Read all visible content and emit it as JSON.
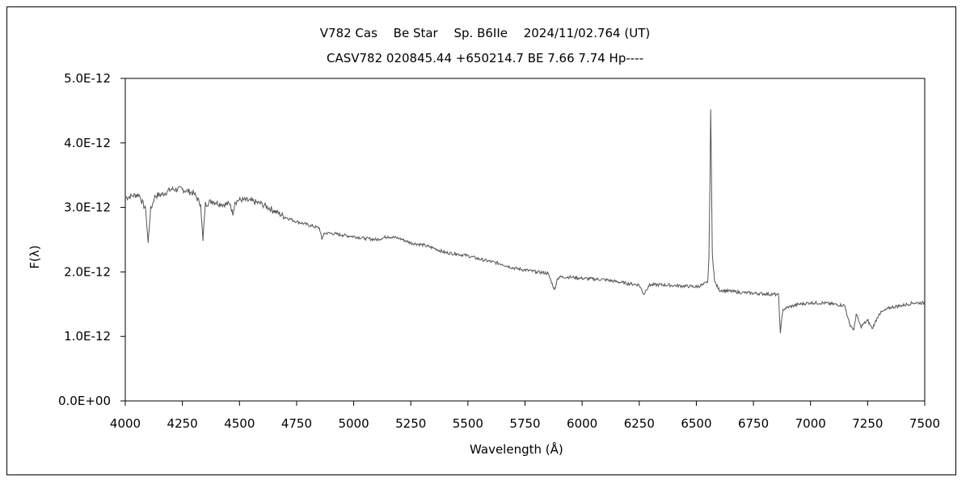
{
  "chart_data": {
    "type": "line",
    "title": "V782 Cas　 Be Star　 Sp. B6IIe　 2024/11/02.764 (UT)",
    "subtitle": "CASV782 020845.44 +650214.7 BE 7.66 7.74 Hp----",
    "xlabel": "Wavelength (Å)",
    "ylabel": "F(λ)",
    "xlim": [
      4000,
      7500
    ],
    "ylim": [
      0,
      5e-12
    ],
    "x_ticks": [
      4000,
      4250,
      4500,
      4750,
      5000,
      5250,
      5500,
      5750,
      6000,
      6250,
      6500,
      6750,
      7000,
      7250,
      7500
    ],
    "x_tick_labels": [
      "4000",
      "4250",
      "4500",
      "4750",
      "5000",
      "5250",
      "5500",
      "5750",
      "6000",
      "6250",
      "6500",
      "6750",
      "7000",
      "7250",
      "7500"
    ],
    "y_ticks": [
      0,
      1e-12,
      2e-12,
      3e-12,
      4e-12,
      5e-12
    ],
    "y_tick_labels": [
      "0.0E+00",
      "1.0E-12",
      "2.0E-12",
      "3.0E-12",
      "4.0E-12",
      "5.0E-12"
    ],
    "grid": false,
    "line_color": "#555555",
    "series": [
      {
        "x": [
          4000,
          4030,
          4060,
          4090,
          4100,
          4110,
          4130,
          4160,
          4200,
          4250,
          4300,
          4330,
          4340,
          4350,
          4380,
          4420,
          4460,
          4470,
          4480,
          4500,
          4550,
          4600,
          4650,
          4700,
          4750,
          4800,
          4850,
          4861,
          4870,
          4900,
          4950,
          5000,
          5050,
          5100,
          5150,
          5200,
          5250,
          5300,
          5350,
          5400,
          5450,
          5500,
          5550,
          5600,
          5650,
          5700,
          5750,
          5800,
          5850,
          5880,
          5890,
          5900,
          5950,
          6000,
          6050,
          6100,
          6150,
          6200,
          6250,
          6270,
          6280,
          6290,
          6300,
          6350,
          6400,
          6450,
          6500,
          6530,
          6550,
          6555,
          6560,
          6563,
          6566,
          6570,
          6580,
          6600,
          6650,
          6700,
          6750,
          6800,
          6850,
          6860,
          6868,
          6875,
          6880,
          6900,
          6950,
          7000,
          7050,
          7100,
          7150,
          7170,
          7190,
          7200,
          7220,
          7250,
          7270,
          7300,
          7350,
          7400,
          7450,
          7500
        ],
        "y": [
          3.15e-12,
          3.18e-12,
          3.2e-12,
          2.95e-12,
          2.45e-12,
          2.95e-12,
          3.18e-12,
          3.2e-12,
          3.28e-12,
          3.28e-12,
          3.22e-12,
          3.05e-12,
          2.48e-12,
          3.05e-12,
          3.1e-12,
          3.05e-12,
          3.05e-12,
          2.9e-12,
          3.08e-12,
          3.12e-12,
          3.1e-12,
          3.05e-12,
          2.95e-12,
          2.85e-12,
          2.78e-12,
          2.73e-12,
          2.68e-12,
          2.5e-12,
          2.6e-12,
          2.6e-12,
          2.57e-12,
          2.55e-12,
          2.52e-12,
          2.5e-12,
          2.55e-12,
          2.52e-12,
          2.45e-12,
          2.42e-12,
          2.37e-12,
          2.3e-12,
          2.28e-12,
          2.25e-12,
          2.2e-12,
          2.16e-12,
          2.12e-12,
          2.06e-12,
          2.03e-12,
          2e-12,
          1.98e-12,
          1.72e-12,
          1.88e-12,
          1.92e-12,
          1.92e-12,
          1.9e-12,
          1.89e-12,
          1.88e-12,
          1.85e-12,
          1.82e-12,
          1.8e-12,
          1.65e-12,
          1.72e-12,
          1.78e-12,
          1.8e-12,
          1.8e-12,
          1.79e-12,
          1.78e-12,
          1.77e-12,
          1.8e-12,
          1.85e-12,
          2.2e-12,
          3.5e-12,
          4.52e-12,
          3.6e-12,
          2.3e-12,
          1.85e-12,
          1.72e-12,
          1.7e-12,
          1.68e-12,
          1.67e-12,
          1.66e-12,
          1.65e-12,
          1.64e-12,
          1.05e-12,
          1.3e-12,
          1.42e-12,
          1.45e-12,
          1.5e-12,
          1.52e-12,
          1.52e-12,
          1.5e-12,
          1.48e-12,
          1.2e-12,
          1.1e-12,
          1.35e-12,
          1.15e-12,
          1.25e-12,
          1.12e-12,
          1.35e-12,
          1.45e-12,
          1.48e-12,
          1.52e-12,
          1.52e-12
        ]
      }
    ]
  }
}
